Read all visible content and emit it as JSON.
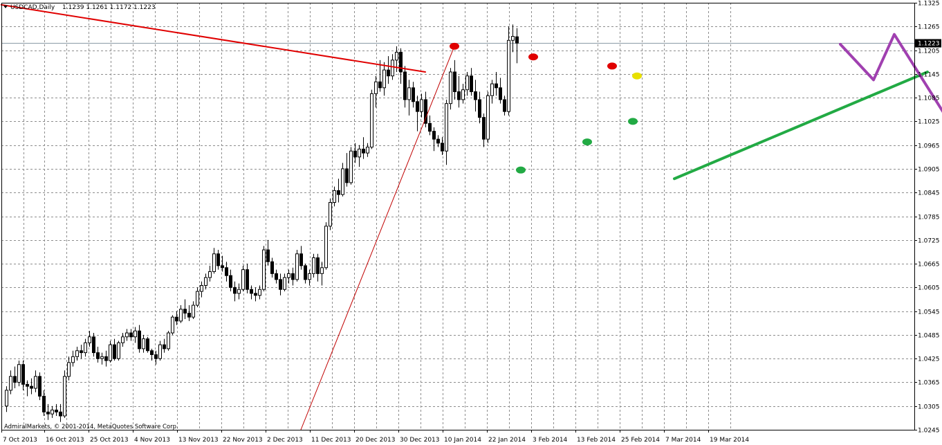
{
  "chart_data": {
    "type": "candlestick",
    "title": "USDCAD,Daily",
    "ohlc_header": "1.1239 1.1261 1.1172 1.1223",
    "last_price_label": "1.1223",
    "copyright": "AdmiralMarkets, © 2001-2014, MetaQuotes Software Corp.",
    "ylim": [
      1.0245,
      1.1325
    ],
    "y_ticks": [
      "1.1325",
      "1.1265",
      "1.1205",
      "1.1145",
      "1.1085",
      "1.1025",
      "1.0965",
      "1.0905",
      "1.0845",
      "1.0785",
      "1.0725",
      "1.0665",
      "1.0605",
      "1.0545",
      "1.0485",
      "1.0425",
      "1.0365",
      "1.0305",
      "1.0245"
    ],
    "x_tick_labels": [
      "7 Oct 2013",
      "16 Oct 2013",
      "25 Oct 2013",
      "4 Nov 2013",
      "13 Nov 2013",
      "22 Nov 2013",
      "2 Dec 2013",
      "11 Dec 2013",
      "20 Dec 2013",
      "30 Dec 2013",
      "10 Jan 2014",
      "22 Jan 2014",
      "3 Feb 2014",
      "13 Feb 2014",
      "25 Feb 2014",
      "7 Mar 2014",
      "19 Mar 2014"
    ],
    "grid": true,
    "candle_up_color": "#ffffff",
    "candle_down_color": "#000000",
    "bars": [
      [
        1.0305,
        1.0355,
        1.029,
        1.0345
      ],
      [
        1.0345,
        1.0395,
        1.0335,
        1.038
      ],
      [
        1.038,
        1.0405,
        1.035,
        1.0365
      ],
      [
        1.0365,
        1.042,
        1.0355,
        1.041
      ],
      [
        1.041,
        1.042,
        1.0345,
        1.036
      ],
      [
        1.036,
        1.037,
        1.033,
        1.0355
      ],
      [
        1.0355,
        1.0375,
        1.0335,
        1.035
      ],
      [
        1.035,
        1.0395,
        1.034,
        1.038
      ],
      [
        1.038,
        1.039,
        1.032,
        1.033
      ],
      [
        1.033,
        1.0345,
        1.028,
        1.029
      ],
      [
        1.029,
        1.031,
        1.027,
        1.0285
      ],
      [
        1.0285,
        1.0305,
        1.0275,
        1.0295
      ],
      [
        1.0295,
        1.031,
        1.028,
        1.029
      ],
      [
        1.029,
        1.031,
        1.0265,
        1.028
      ],
      [
        1.028,
        1.0395,
        1.0275,
        1.038
      ],
      [
        1.038,
        1.043,
        1.037,
        1.0415
      ],
      [
        1.0415,
        1.0445,
        1.0405,
        1.043
      ],
      [
        1.043,
        1.0455,
        1.042,
        1.0445
      ],
      [
        1.0445,
        1.046,
        1.0425,
        1.044
      ],
      [
        1.044,
        1.0475,
        1.043,
        1.0465
      ],
      [
        1.0465,
        1.0495,
        1.0455,
        1.048
      ],
      [
        1.048,
        1.049,
        1.043,
        1.044
      ],
      [
        1.044,
        1.0455,
        1.0415,
        1.0425
      ],
      [
        1.0425,
        1.044,
        1.041,
        1.043
      ],
      [
        1.043,
        1.0445,
        1.0405,
        1.042
      ],
      [
        1.042,
        1.047,
        1.0415,
        1.046
      ],
      [
        1.046,
        1.0475,
        1.042,
        1.0425
      ],
      [
        1.0425,
        1.047,
        1.042,
        1.0465
      ],
      [
        1.0465,
        1.049,
        1.0455,
        1.048
      ],
      [
        1.048,
        1.05,
        1.047,
        1.049
      ],
      [
        1.049,
        1.05,
        1.047,
        1.048
      ],
      [
        1.048,
        1.0505,
        1.0465,
        1.0495
      ],
      [
        1.0495,
        1.051,
        1.044,
        1.045
      ],
      [
        1.045,
        1.0485,
        1.044,
        1.0475
      ],
      [
        1.0475,
        1.048,
        1.044,
        1.0445
      ],
      [
        1.0445,
        1.045,
        1.042,
        1.0435
      ],
      [
        1.0435,
        1.0445,
        1.041,
        1.0425
      ],
      [
        1.0425,
        1.047,
        1.042,
        1.046
      ],
      [
        1.046,
        1.0475,
        1.044,
        1.045
      ],
      [
        1.045,
        1.0495,
        1.0445,
        1.049
      ],
      [
        1.049,
        1.0535,
        1.0485,
        1.053
      ],
      [
        1.053,
        1.0545,
        1.051,
        1.052
      ],
      [
        1.052,
        1.056,
        1.0515,
        1.055
      ],
      [
        1.055,
        1.0575,
        1.0525,
        1.054
      ],
      [
        1.054,
        1.056,
        1.052,
        1.053
      ],
      [
        1.053,
        1.057,
        1.0525,
        1.056
      ],
      [
        1.056,
        1.0605,
        1.0555,
        1.0595
      ],
      [
        1.0595,
        1.062,
        1.058,
        1.061
      ],
      [
        1.061,
        1.064,
        1.06,
        1.063
      ],
      [
        1.063,
        1.066,
        1.062,
        1.0645
      ],
      [
        1.0645,
        1.0705,
        1.064,
        1.069
      ],
      [
        1.069,
        1.07,
        1.065,
        1.066
      ],
      [
        1.066,
        1.0685,
        1.0645,
        1.0655
      ],
      [
        1.0655,
        1.067,
        1.062,
        1.0635
      ],
      [
        1.0635,
        1.065,
        1.0595,
        1.0605
      ],
      [
        1.0605,
        1.062,
        1.057,
        1.059
      ],
      [
        1.059,
        1.0615,
        1.0575,
        1.06
      ],
      [
        1.06,
        1.066,
        1.0595,
        1.065
      ],
      [
        1.065,
        1.0665,
        1.059,
        1.06
      ],
      [
        1.06,
        1.061,
        1.0575,
        1.059
      ],
      [
        1.059,
        1.0605,
        1.057,
        1.0585
      ],
      [
        1.0585,
        1.061,
        1.0575,
        1.06
      ],
      [
        1.06,
        1.071,
        1.0595,
        1.07
      ],
      [
        1.07,
        1.0725,
        1.066,
        1.067
      ],
      [
        1.067,
        1.068,
        1.063,
        1.064
      ],
      [
        1.064,
        1.065,
        1.0615,
        1.0625
      ],
      [
        1.0625,
        1.064,
        1.0585,
        1.06
      ],
      [
        1.06,
        1.064,
        1.0595,
        1.063
      ],
      [
        1.063,
        1.065,
        1.0615,
        1.064
      ],
      [
        1.064,
        1.0655,
        1.061,
        1.0625
      ],
      [
        1.0625,
        1.07,
        1.062,
        1.069
      ],
      [
        1.069,
        1.071,
        1.065,
        1.066
      ],
      [
        1.066,
        1.0665,
        1.0615,
        1.0625
      ],
      [
        1.0625,
        1.065,
        1.061,
        1.064
      ],
      [
        1.064,
        1.069,
        1.063,
        1.068
      ],
      [
        1.068,
        1.069,
        1.062,
        1.064
      ],
      [
        1.064,
        1.067,
        1.061,
        1.0655
      ],
      [
        1.0655,
        1.077,
        1.065,
        1.076
      ],
      [
        1.076,
        1.083,
        1.075,
        1.082
      ],
      [
        1.082,
        1.086,
        1.081,
        1.085
      ],
      [
        1.085,
        1.088,
        1.082,
        1.084
      ],
      [
        1.084,
        1.092,
        1.0835,
        1.0905
      ],
      [
        1.0905,
        1.0945,
        1.086,
        1.087
      ],
      [
        1.087,
        1.096,
        1.0865,
        1.095
      ],
      [
        1.095,
        1.097,
        1.092,
        1.0935
      ],
      [
        1.0935,
        1.0965,
        1.091,
        1.0955
      ],
      [
        1.0955,
        1.0985,
        1.093,
        1.0945
      ],
      [
        1.0945,
        1.097,
        1.0935,
        1.096
      ],
      [
        1.096,
        1.1105,
        1.0955,
        1.1095
      ],
      [
        1.1095,
        1.114,
        1.106,
        1.1125
      ],
      [
        1.1125,
        1.118,
        1.11,
        1.111
      ],
      [
        1.111,
        1.1175,
        1.109,
        1.1155
      ],
      [
        1.1155,
        1.119,
        1.112,
        1.114
      ],
      [
        1.114,
        1.1195,
        1.113,
        1.118
      ],
      [
        1.118,
        1.1215,
        1.115,
        1.12
      ],
      [
        1.12,
        1.121,
        1.112,
        1.115
      ],
      [
        1.115,
        1.1165,
        1.106,
        1.108
      ],
      [
        1.108,
        1.113,
        1.104,
        1.111
      ],
      [
        1.111,
        1.1125,
        1.106,
        1.1075
      ],
      [
        1.1075,
        1.109,
        1.1,
        1.105
      ],
      [
        1.105,
        1.1095,
        1.1035,
        1.108
      ],
      [
        1.108,
        1.11,
        1.101,
        1.102
      ],
      [
        1.102,
        1.104,
        1.099,
        1.1
      ],
      [
        1.1,
        1.101,
        1.095,
        1.098
      ],
      [
        1.098,
        1.099,
        1.096,
        1.097
      ],
      [
        1.097,
        1.0985,
        1.094,
        1.095
      ],
      [
        1.095,
        1.108,
        1.0915,
        1.107
      ],
      [
        1.107,
        1.116,
        1.1055,
        1.115
      ],
      [
        1.115,
        1.118,
        1.108,
        1.11
      ],
      [
        1.11,
        1.114,
        1.106,
        1.108
      ],
      [
        1.108,
        1.112,
        1.107,
        1.1105
      ],
      [
        1.1105,
        1.115,
        1.109,
        1.114
      ],
      [
        1.114,
        1.116,
        1.109,
        1.11
      ],
      [
        1.11,
        1.113,
        1.105,
        1.108
      ],
      [
        1.108,
        1.11,
        1.102,
        1.1035
      ],
      [
        1.1035,
        1.1045,
        1.096,
        1.098
      ],
      [
        1.098,
        1.11,
        1.097,
        1.109
      ],
      [
        1.109,
        1.113,
        1.107,
        1.112
      ],
      [
        1.112,
        1.115,
        1.109,
        1.111
      ],
      [
        1.111,
        1.1135,
        1.107,
        1.108
      ],
      [
        1.108,
        1.109,
        1.104,
        1.105
      ],
      [
        1.105,
        1.1265,
        1.104,
        1.123
      ],
      [
        1.123,
        1.127,
        1.12,
        1.124
      ],
      [
        1.1239,
        1.1261,
        1.1172,
        1.1223
      ]
    ],
    "annotations": {
      "resistance_line": {
        "color": "#e00000",
        "from": [
          -1.2,
          1.132
        ],
        "to": [
          101.0,
          1.115
        ]
      },
      "steep_trend_line": {
        "color": "#c00000",
        "from": [
          71.0,
          1.0245
        ],
        "to": [
          108.0,
          1.1215
        ]
      },
      "support_line": {
        "color": "#22aa44",
        "from": [
          161.0,
          1.088
        ],
        "to": [
          222.0,
          1.115
        ]
      },
      "forecast_path": {
        "color": "#a040b0",
        "points": [
          [
            201.0,
            1.122
          ],
          [
            209.0,
            1.113
          ],
          [
            214.0,
            1.1245
          ],
          [
            226.0,
            1.1045
          ]
        ]
      },
      "markers": [
        {
          "color": "#e00000",
          "i": 108.0,
          "price": 1.1215
        },
        {
          "color": "#e00000",
          "i": 127.0,
          "price": 1.1188
        },
        {
          "color": "#e00000",
          "i": 146.0,
          "price": 1.1165
        },
        {
          "color": "#e8e000",
          "i": 152.0,
          "price": 1.114
        },
        {
          "color": "#22aa44",
          "i": 124.0,
          "price": 1.0902
        },
        {
          "color": "#22aa44",
          "i": 140.0,
          "price": 1.0973
        },
        {
          "color": "#22aa44",
          "i": 151.0,
          "price": 1.1025
        }
      ]
    }
  }
}
